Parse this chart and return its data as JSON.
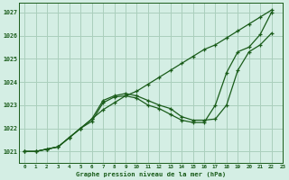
{
  "title": "Graphe pression niveau de la mer (hPa)",
  "bg_color": "#d4eee4",
  "grid_color": "#aacfbc",
  "line_color": "#1a5c1a",
  "xlim": [
    -0.5,
    23
  ],
  "ylim": [
    1020.5,
    1027.4
  ],
  "yticks": [
    1021,
    1022,
    1023,
    1024,
    1025,
    1026,
    1027
  ],
  "xticks": [
    0,
    1,
    2,
    3,
    4,
    5,
    6,
    7,
    8,
    9,
    10,
    11,
    12,
    13,
    14,
    15,
    16,
    17,
    18,
    19,
    20,
    21,
    22,
    23
  ],
  "series_straight": [
    [
      0,
      1021.0
    ],
    [
      1,
      1021.0
    ],
    [
      2,
      1021.1
    ],
    [
      3,
      1021.2
    ],
    [
      4,
      1021.6
    ],
    [
      5,
      1022.0
    ],
    [
      6,
      1022.4
    ],
    [
      7,
      1022.8
    ],
    [
      8,
      1023.1
    ],
    [
      9,
      1023.4
    ],
    [
      10,
      1023.6
    ],
    [
      11,
      1023.9
    ],
    [
      12,
      1024.2
    ],
    [
      13,
      1024.5
    ],
    [
      14,
      1024.8
    ],
    [
      15,
      1025.1
    ],
    [
      16,
      1025.4
    ],
    [
      17,
      1025.6
    ],
    [
      18,
      1025.9
    ],
    [
      19,
      1026.2
    ],
    [
      20,
      1026.5
    ],
    [
      21,
      1026.8
    ],
    [
      22,
      1027.1
    ]
  ],
  "series_mid": [
    [
      0,
      1021.0
    ],
    [
      1,
      1021.0
    ],
    [
      2,
      1021.1
    ],
    [
      3,
      1021.2
    ],
    [
      4,
      1021.6
    ],
    [
      5,
      1022.0
    ],
    [
      6,
      1022.4
    ],
    [
      7,
      1023.2
    ],
    [
      8,
      1023.4
    ],
    [
      9,
      1023.5
    ],
    [
      10,
      1023.4
    ],
    [
      11,
      1023.2
    ],
    [
      12,
      1023.0
    ],
    [
      13,
      1022.85
    ],
    [
      14,
      1022.5
    ],
    [
      15,
      1022.35
    ],
    [
      16,
      1022.35
    ],
    [
      17,
      1022.4
    ],
    [
      18,
      1023.0
    ],
    [
      19,
      1024.5
    ],
    [
      20,
      1025.3
    ],
    [
      21,
      1025.6
    ],
    [
      22,
      1026.1
    ]
  ],
  "series_dip": [
    [
      0,
      1021.0
    ],
    [
      1,
      1021.0
    ],
    [
      2,
      1021.1
    ],
    [
      3,
      1021.2
    ],
    [
      4,
      1021.6
    ],
    [
      5,
      1022.0
    ],
    [
      6,
      1022.3
    ],
    [
      7,
      1023.1
    ],
    [
      8,
      1023.35
    ],
    [
      9,
      1023.4
    ],
    [
      10,
      1023.3
    ],
    [
      11,
      1023.0
    ],
    [
      12,
      1022.85
    ],
    [
      13,
      1022.6
    ],
    [
      14,
      1022.35
    ],
    [
      15,
      1022.25
    ],
    [
      16,
      1022.25
    ],
    [
      17,
      1023.0
    ],
    [
      18,
      1024.4
    ],
    [
      19,
      1025.3
    ],
    [
      20,
      1025.5
    ],
    [
      21,
      1026.05
    ],
    [
      22,
      1027.0
    ]
  ]
}
